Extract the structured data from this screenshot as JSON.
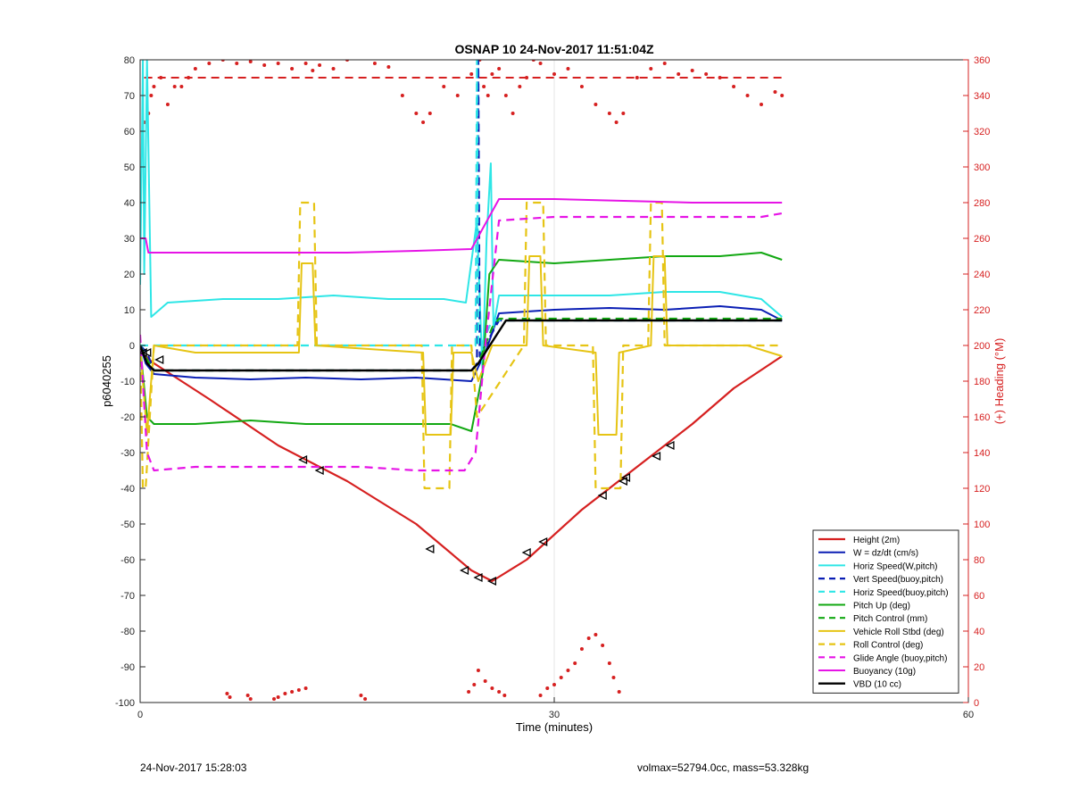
{
  "chart_data": {
    "type": "line",
    "title": "OSNAP 10 24-Nov-2017 11:51:04Z",
    "xlabel": "Time (minutes)",
    "ylabel_left": "p6040255",
    "ylabel_right": "(+) Heading (°M)",
    "xlim": [
      0,
      60
    ],
    "ylim_left": [
      -100,
      80
    ],
    "ylim_right": [
      0,
      360
    ],
    "x_ticks": [
      0,
      30,
      60
    ],
    "y_ticks_left": [
      -100,
      -90,
      -80,
      -70,
      -60,
      -50,
      -40,
      -30,
      -20,
      -10,
      0,
      10,
      20,
      30,
      40,
      50,
      60,
      70,
      80
    ],
    "y_ticks_right": [
      0,
      20,
      40,
      60,
      80,
      100,
      120,
      140,
      160,
      180,
      200,
      220,
      240,
      260,
      280,
      300,
      320,
      340,
      360
    ],
    "grid": true,
    "legend_position": "bottom-right",
    "colors": {
      "height": "#d62020",
      "w": "#0a1eb4",
      "horiz": "#2ee6e6",
      "pitch": "#12a812",
      "roll": "#e6c414",
      "glide": "#e614e6",
      "vbd": "#000000",
      "heading": "#d62020"
    },
    "series": [
      {
        "name": "Height (2m)",
        "style": "solid",
        "color": "#d62020",
        "width": 2.2,
        "x": [
          0,
          1,
          5,
          10,
          15,
          20,
          24,
          25.5,
          28,
          32,
          36,
          40,
          43,
          46.5
        ],
        "y": [
          -2,
          -5,
          -15,
          -28,
          -38,
          -50,
          -63,
          -66,
          -60,
          -46,
          -34,
          -22,
          -12,
          -3
        ]
      },
      {
        "name": "W = dz/dt (cm/s)",
        "style": "solid",
        "color": "#0a1eb4",
        "width": 2,
        "x": [
          0,
          0.4,
          1,
          4,
          8,
          12,
          16,
          20,
          24,
          25,
          26,
          30,
          34,
          38,
          42,
          45,
          46.5
        ],
        "y": [
          0,
          -5,
          -8,
          -9,
          -9.5,
          -9,
          -9.5,
          -9,
          -10,
          -2,
          9,
          10,
          10.5,
          10,
          11,
          10,
          7
        ]
      },
      {
        "name": "Horiz Speed(W,pitch)",
        "style": "solid",
        "color": "#2ee6e6",
        "width": 2,
        "x": [
          0,
          0.2,
          0.3,
          0.5,
          0.8,
          2,
          6,
          10,
          14,
          18,
          22,
          23.6,
          24.4,
          24.8,
          25.1,
          25.4,
          25.6,
          26,
          30,
          34,
          38,
          42,
          45,
          46.5
        ],
        "y": [
          17,
          80,
          20,
          80,
          8,
          12,
          13,
          13,
          14,
          13,
          13,
          12,
          35,
          -8,
          30,
          51,
          5,
          14,
          14,
          14,
          15,
          15,
          13,
          8
        ]
      },
      {
        "name": "Vert Speed(buoy,pitch)",
        "style": "dashed",
        "color": "#0a1eb4",
        "width": 2.2,
        "x": [
          0,
          0.5,
          1,
          24,
          24.4,
          24.5,
          24.6,
          25,
          26,
          46.5
        ],
        "y": [
          0,
          -2,
          -7,
          -7,
          -5,
          80,
          -3,
          0,
          7,
          7
        ]
      },
      {
        "name": "Horiz Speed(buoy,pitch)",
        "style": "dashed",
        "color": "#2ee6e6",
        "width": 2.2,
        "x": [
          0,
          24.3,
          24.4,
          24.5,
          24.7,
          25.5,
          26,
          46.5
        ],
        "y": [
          0,
          0,
          80,
          0,
          0,
          7,
          7,
          7
        ]
      },
      {
        "name": "Pitch Up (deg)",
        "style": "solid",
        "color": "#12a812",
        "width": 2,
        "x": [
          0,
          0.5,
          1,
          4,
          8,
          12,
          16,
          20,
          22.5,
          24,
          24.8,
          25.3,
          26,
          30,
          34,
          38,
          42,
          45,
          46.5
        ],
        "y": [
          0,
          -20,
          -22,
          -22,
          -21,
          -22,
          -22,
          -22,
          -22,
          -24,
          -8,
          20,
          24,
          23,
          24,
          25,
          25,
          26,
          24
        ]
      },
      {
        "name": "Pitch Control (mm)",
        "style": "dashed",
        "color": "#12a812",
        "width": 2.2,
        "x": [
          0,
          0.5,
          1,
          24,
          24.5,
          25.5,
          26,
          46.5
        ],
        "y": [
          0,
          -4,
          -7,
          -7,
          -5,
          5,
          7.5,
          7.5
        ]
      },
      {
        "name": "Vehicle Roll Stbd (deg)",
        "style": "solid",
        "color": "#e6c414",
        "width": 2,
        "x": [
          0,
          0.5,
          1,
          4,
          11.5,
          11.7,
          12.5,
          12.7,
          20.5,
          20.7,
          22.5,
          22.7,
          24,
          24.5,
          25.5,
          28,
          28.2,
          29,
          29.2,
          33,
          33.2,
          34.5,
          34.7,
          37,
          37.2,
          38,
          38.2,
          42,
          44,
          46.5
        ],
        "y": [
          0,
          -25,
          0,
          -2,
          -2,
          23,
          23,
          0,
          -2,
          -25,
          -25,
          -2,
          -2,
          -10,
          0,
          0,
          25,
          25,
          0,
          -2,
          -25,
          -25,
          -2,
          0,
          25,
          25,
          0,
          0,
          0,
          -3
        ]
      },
      {
        "name": "Roll Control (deg)",
        "style": "dashed",
        "color": "#e6c414",
        "width": 2.2,
        "x": [
          0,
          0.2,
          0.4,
          1,
          11.4,
          11.6,
          12.6,
          12.8,
          20.4,
          20.6,
          22.4,
          22.6,
          24,
          24.4,
          27.8,
          28,
          29.2,
          29.4,
          32.8,
          33,
          34.8,
          35,
          36.8,
          37,
          37.8,
          38,
          46.5
        ],
        "y": [
          0,
          -40,
          -40,
          0,
          0,
          40,
          40,
          0,
          0,
          -40,
          -40,
          0,
          0,
          -20,
          0,
          40,
          40,
          0,
          0,
          -40,
          -40,
          0,
          0,
          40,
          40,
          0,
          0
        ]
      },
      {
        "name": "Glide Angle (buoy,pitch)",
        "style": "dashed",
        "color": "#e614e6",
        "width": 2.2,
        "x": [
          0,
          0.5,
          1,
          4,
          8,
          12,
          16,
          20,
          23.5,
          24.3,
          25,
          26,
          30,
          34,
          38,
          42,
          45,
          46.5
        ],
        "y": [
          3,
          -30,
          -35,
          -34,
          -34,
          -34,
          -34,
          -35,
          -35,
          -30,
          0,
          35,
          36,
          36,
          36,
          36,
          36,
          37
        ]
      },
      {
        "name": "Buoyancy (10g)",
        "style": "solid",
        "color": "#e614e6",
        "width": 2,
        "x": [
          0,
          0.4,
          0.6,
          5,
          10,
          15,
          20,
          24,
          26,
          30,
          40,
          46.5
        ],
        "y": [
          30,
          30,
          26,
          26,
          26,
          26,
          26.5,
          27,
          41,
          41,
          40,
          40
        ]
      },
      {
        "name": "VBD (10 cc)",
        "style": "solid",
        "color": "#000000",
        "width": 2.4,
        "x": [
          0,
          0.5,
          1,
          24,
          24.5,
          26.5,
          46.5
        ],
        "y": [
          0,
          -5,
          -7,
          -7,
          -5,
          7,
          7
        ]
      }
    ],
    "heading_series": {
      "name": "Heading",
      "axis": "right",
      "style": "dots",
      "color": "#d62020",
      "x": [
        0.3,
        0.6,
        0.8,
        1.0,
        1.5,
        2.0,
        2.5,
        3,
        3.5,
        4,
        5,
        6,
        7,
        8,
        9,
        10,
        11,
        12,
        12.5,
        13,
        14,
        15,
        16,
        17,
        18,
        19,
        20,
        20.5,
        21,
        22,
        23,
        24,
        24.6,
        24.9,
        25.2,
        25.5,
        26,
        26.5,
        27,
        27.5,
        28,
        28.5,
        29,
        30,
        31,
        32,
        33,
        34,
        34.5,
        35,
        36,
        37,
        38,
        39,
        40,
        41,
        42,
        43,
        44,
        45,
        46,
        46.5
      ],
      "y": [
        325,
        330,
        340,
        345,
        350,
        335,
        345,
        345,
        350,
        355,
        358,
        360,
        358,
        359,
        357,
        358,
        355,
        358,
        354,
        357,
        355,
        360,
        362,
        358,
        356,
        340,
        330,
        325,
        330,
        345,
        340,
        352,
        360,
        345,
        340,
        352,
        355,
        340,
        330,
        345,
        350,
        360,
        358,
        352,
        355,
        345,
        335,
        330,
        325,
        330,
        350,
        355,
        358,
        352,
        354,
        352,
        350,
        345,
        340,
        335,
        342,
        340
      ]
    },
    "heading_target": {
      "name": "Heading target",
      "axis": "right",
      "style": "dashed",
      "color": "#d62020",
      "x": [
        0.3,
        46.5
      ],
      "y": [
        350,
        350
      ]
    },
    "heading_bottom_dots": {
      "axis": "right",
      "color": "#d62020",
      "x": [
        6.3,
        6.5,
        7.8,
        8.0,
        9.7,
        10,
        10.5,
        11,
        11.5,
        12,
        16,
        16.3,
        23.8,
        24.2,
        24.5,
        25,
        25.5,
        26,
        26.4,
        29,
        29.5,
        30,
        30.5,
        31,
        31.5,
        32,
        32.5,
        33,
        33.5,
        34,
        34.3,
        34.7
      ],
      "y": [
        5,
        3,
        4,
        2,
        2,
        3,
        5,
        6,
        7,
        8,
        4,
        2,
        6,
        10,
        18,
        12,
        8,
        6,
        4,
        4,
        8,
        10,
        14,
        18,
        22,
        30,
        36,
        38,
        32,
        22,
        14,
        6
      ]
    },
    "markers": {
      "shape": "triangle",
      "color": "#000000",
      "on_series": "Height (2m)",
      "x": [
        0.2,
        0.5,
        1.4,
        11.8,
        13,
        21,
        23.5,
        24.5,
        25.5,
        28,
        29.2,
        33.5,
        35,
        35.2,
        37.4,
        38.4
      ],
      "y": [
        -2,
        -2,
        -4,
        -32,
        -35,
        -57,
        -63,
        -65,
        -66,
        -58,
        -55,
        -42,
        -38,
        -37,
        -31,
        -28
      ]
    }
  },
  "footer": {
    "timestamp": "24-Nov-2017 15:28:03",
    "mass_info": "volmax=52794.0cc, mass=53.328kg"
  }
}
